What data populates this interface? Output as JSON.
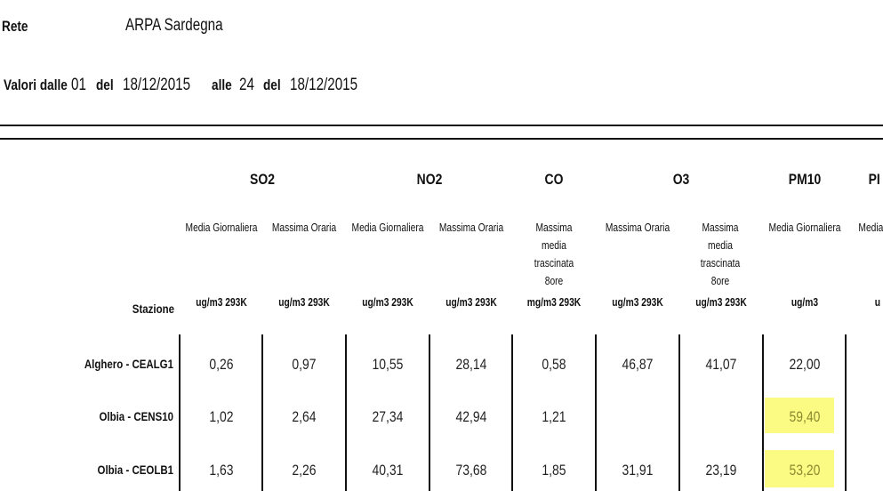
{
  "header": {
    "rete_label": "Rete",
    "rete_value": "ARPA Sardegna",
    "valori_label": "Valori dalle",
    "from_hour": "01",
    "del1_label": "del",
    "from_date": "18/12/2015",
    "alle_label": "alle",
    "to_hour": "24",
    "del2_label": "del",
    "to_date": "18/12/2015"
  },
  "table": {
    "pollutants": [
      "SO2",
      "NO2",
      "CO",
      "O3",
      "PM10",
      "PI"
    ],
    "subheaders": [
      "Media Giornaliera",
      "Massima Oraria",
      "Media Giornaliera",
      "Massima Oraria",
      "Massima media trascinata 8ore",
      "Massima Oraria",
      "Massima media trascinata 8ore",
      "Media Giornaliera",
      "Media G"
    ],
    "station_header": "Stazione",
    "units": [
      "ug/m3 293K",
      "ug/m3 293K",
      "ug/m3 293K",
      "ug/m3 293K",
      "mg/m3 293K",
      "ug/m3 293K",
      "ug/m3 293K",
      "ug/m3",
      "u"
    ],
    "rows": [
      {
        "station": "Alghero - CEALG1",
        "values": [
          "0,26",
          "0,97",
          "10,55",
          "28,14",
          "0,58",
          "46,87",
          "41,07",
          "22,00"
        ]
      },
      {
        "station": "Olbia - CENS10",
        "values": [
          "1,02",
          "2,64",
          "27,34",
          "42,94",
          "1,21",
          "",
          "",
          "59,40"
        ]
      },
      {
        "station": "Olbia - CEOLB1",
        "values": [
          "1,63",
          "2,26",
          "40,31",
          "73,68",
          "1,85",
          "31,91",
          "23,19",
          "53,20"
        ]
      }
    ],
    "highlight_color": "#fbfa82",
    "highlight_text_color": "#8a8a30"
  }
}
